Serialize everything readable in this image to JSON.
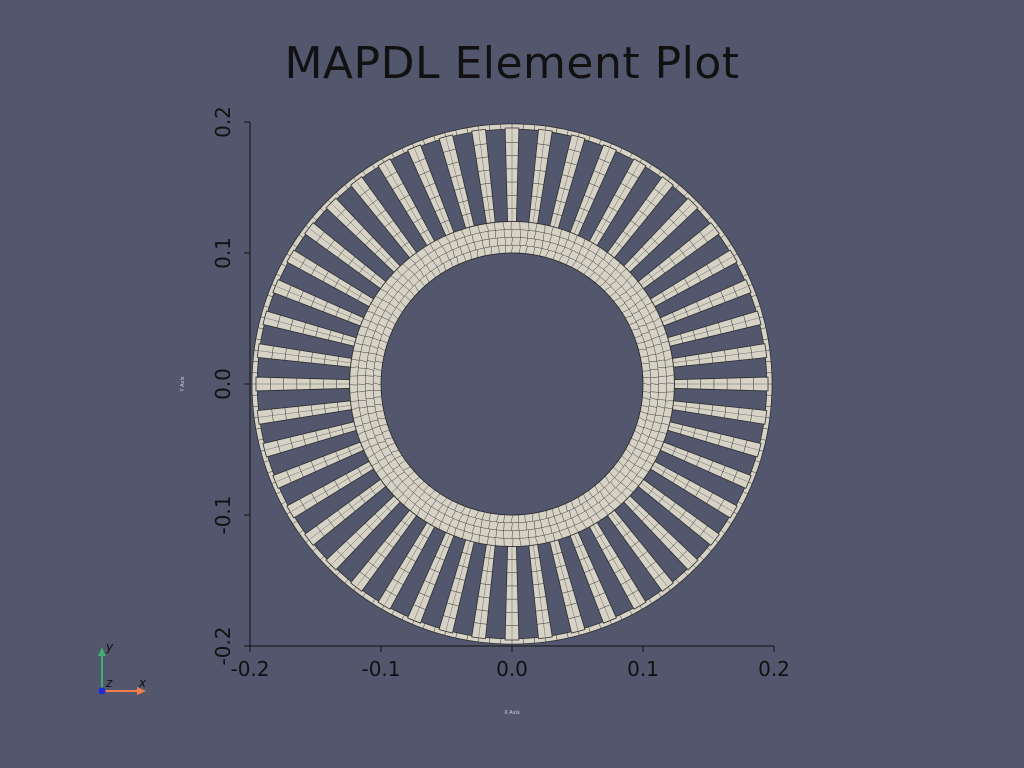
{
  "title": "MAPDL Element Plot",
  "chart_data": {
    "type": "diagram",
    "xlabel": "X Axis",
    "ylabel": "Y Axis",
    "xlim": [
      -0.2,
      0.2
    ],
    "ylim": [
      -0.2,
      0.2
    ],
    "x_ticks": [
      "-0.2",
      "-0.1",
      "0.0",
      "0.1",
      "0.2"
    ],
    "y_ticks": [
      "-0.2",
      "-0.1",
      "0.0",
      "0.1",
      "0.2"
    ],
    "geometry": {
      "outer_ring": {
        "r_outer": 0.1985,
        "r_inner": 0.1945
      },
      "hub": {
        "r_outer": 0.124,
        "r_inner": 0.1
      },
      "spokes": {
        "count": 48,
        "r_start": 0.124,
        "r_end": 0.1945,
        "half_width_deg": 1.55
      }
    },
    "mesh_fill_color": "#d6d2c5",
    "mesh_line_color": "#2e2e2e",
    "background_color": "#52576e"
  },
  "orientation_triad": {
    "x_label": "x",
    "y_label": "y",
    "z_label": "z",
    "x_color": "#f07f4a",
    "y_color": "#3fae6e",
    "z_color": "#1f2ad8"
  }
}
